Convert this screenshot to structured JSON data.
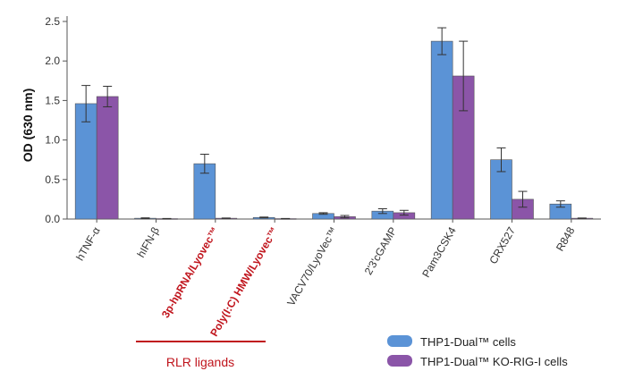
{
  "chart_data": {
    "type": "bar",
    "ylabel": "OD (630 nm)",
    "ylim": [
      0,
      2.5
    ],
    "yticks": [
      "0.0",
      "0.5",
      "1.0",
      "1.5",
      "2.0",
      "2.5"
    ],
    "categories": [
      "hTNF-α",
      "hIFN-β",
      "3p-hpRNA/Lyovec™",
      "Poly(I:C) HMW/Lyovec™",
      "VACV70/LyoVec™",
      "2'3'cGAMP",
      "Pam3CSK4",
      "CRX527",
      "R848"
    ],
    "highlighted_categories": [
      "3p-hpRNA/Lyovec™",
      "Poly(I:C) HMW/Lyovec™"
    ],
    "series": [
      {
        "name": "THP1-Dual™ cells",
        "color": "#5b93d6",
        "values": [
          1.46,
          0.01,
          0.7,
          0.02,
          0.07,
          0.1,
          2.25,
          0.75,
          0.19
        ],
        "errors": [
          0.23,
          0.005,
          0.12,
          0.005,
          0.01,
          0.03,
          0.17,
          0.15,
          0.04
        ]
      },
      {
        "name": "THP1-Dual™ KO-RIG-I cells",
        "color": "#8b55a8",
        "values": [
          1.55,
          0.005,
          0.01,
          0.005,
          0.03,
          0.08,
          1.81,
          0.25,
          0.01
        ],
        "errors": [
          0.13,
          0.002,
          0.003,
          0.002,
          0.015,
          0.03,
          0.44,
          0.1,
          0.003
        ]
      }
    ],
    "group_annotation": "RLR ligands",
    "legend_position": "bottom-right",
    "grid": false
  }
}
